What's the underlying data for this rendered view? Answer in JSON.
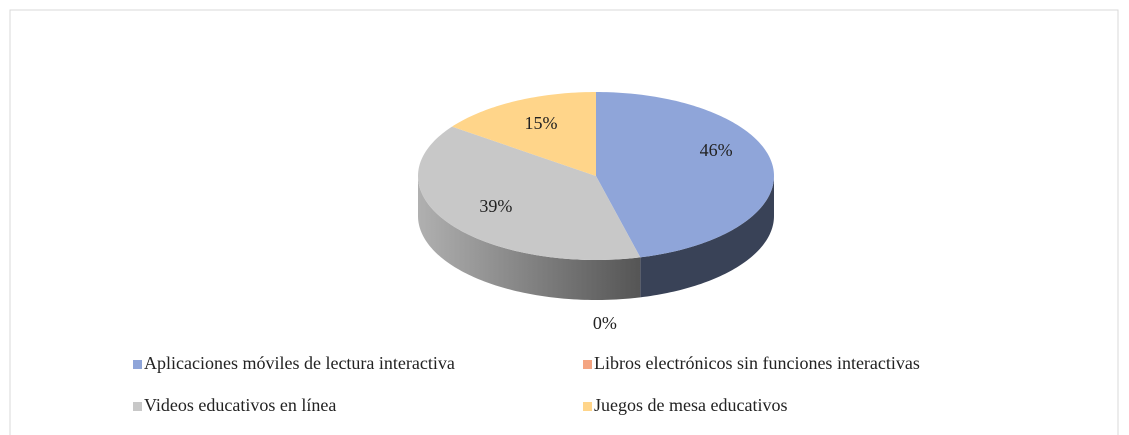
{
  "chart_data": {
    "type": "pie",
    "categories": [
      "Aplicaciones móviles de lectura interactiva",
      "Libros electrónicos sin funciones interactivas",
      "Videos educativos en línea",
      "Juegos de mesa educativos"
    ],
    "values": [
      46,
      0,
      39,
      15
    ],
    "value_labels": [
      "46%",
      "0%",
      "39%",
      "15%"
    ],
    "colors": [
      "#8fa5d9",
      "#f4a582",
      "#c8c8c8",
      "#ffd58a"
    ],
    "legend": "bottom"
  }
}
